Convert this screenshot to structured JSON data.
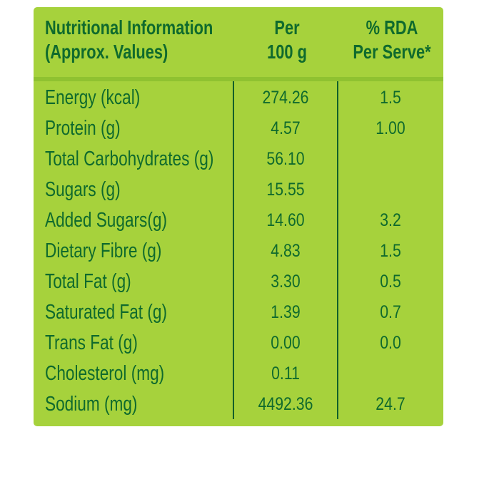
{
  "header": {
    "col1_line1": "Nutritional Information",
    "col1_line2": "(Approx. Values)",
    "col2_line1": "Per",
    "col2_line2": "100 g",
    "col3_line1": "% RDA",
    "col3_line2": "Per Serve*"
  },
  "rows": [
    {
      "label": "Energy (kcal)",
      "per100g": "274.26",
      "rda": "1.5"
    },
    {
      "label": "Protein (g)",
      "per100g": "4.57",
      "rda": "1.00"
    },
    {
      "label": "Total Carbohydrates (g)",
      "per100g": "56.10",
      "rda": ""
    },
    {
      "label": "Sugars (g)",
      "per100g": "15.55",
      "rda": ""
    },
    {
      "label": "Added Sugars(g)",
      "per100g": "14.60",
      "rda": "3.2"
    },
    {
      "label": "Dietary Fibre (g)",
      "per100g": "4.83",
      "rda": "1.5"
    },
    {
      "label": "Total Fat (g)",
      "per100g": "3.30",
      "rda": "0.5"
    },
    {
      "label": "Saturated Fat (g)",
      "per100g": "1.39",
      "rda": "0.7"
    },
    {
      "label": "Trans Fat (g)",
      "per100g": "0.00",
      "rda": "0.0"
    },
    {
      "label": "Cholesterol (mg)",
      "per100g": "0.11",
      "rda": ""
    },
    {
      "label": "Sodium (mg)",
      "per100g": "4492.36",
      "rda": "24.7"
    }
  ],
  "colors": {
    "panel": "#a6d23c",
    "text": "#0f6a2d",
    "lines": "#11602a"
  }
}
